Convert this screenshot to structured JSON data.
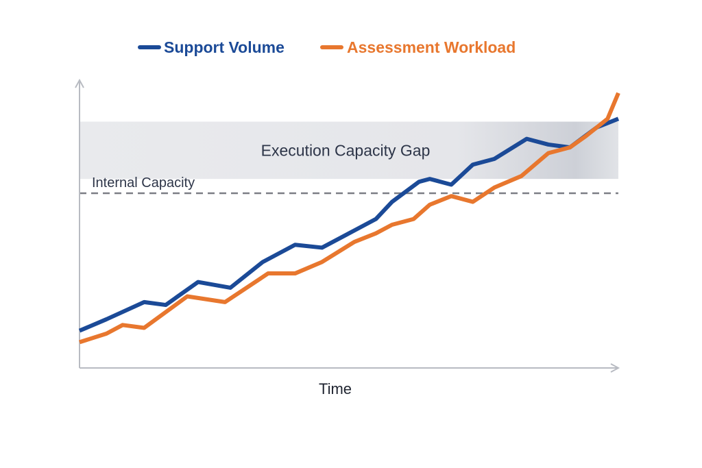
{
  "chart_data": {
    "type": "line",
    "xlabel": "Time",
    "ylabel": "",
    "legend_position": "top-center",
    "grid": false,
    "ylim": [
      0,
      100
    ],
    "series": [
      {
        "name": "Support Volume",
        "color": "#1b4a97",
        "points": [
          [
            0,
            13
          ],
          [
            5,
            17
          ],
          [
            12,
            23
          ],
          [
            16,
            22
          ],
          [
            22,
            30
          ],
          [
            28,
            28
          ],
          [
            34,
            37
          ],
          [
            40,
            43
          ],
          [
            45,
            42
          ],
          [
            51,
            48
          ],
          [
            55,
            52
          ],
          [
            58,
            58
          ],
          [
            63,
            65
          ],
          [
            65,
            66
          ],
          [
            69,
            64
          ],
          [
            73,
            71
          ],
          [
            77,
            73
          ],
          [
            83,
            80
          ],
          [
            87,
            78
          ],
          [
            91,
            77
          ],
          [
            96,
            84
          ],
          [
            100,
            87
          ]
        ]
      },
      {
        "name": "Assessment Workload",
        "color": "#e8772e",
        "points": [
          [
            0,
            9
          ],
          [
            5,
            12
          ],
          [
            8,
            15
          ],
          [
            12,
            14
          ],
          [
            20,
            25
          ],
          [
            27,
            23
          ],
          [
            35,
            33
          ],
          [
            40,
            33
          ],
          [
            45,
            37
          ],
          [
            51,
            44
          ],
          [
            55,
            47
          ],
          [
            58,
            50
          ],
          [
            62,
            52
          ],
          [
            65,
            57
          ],
          [
            69,
            60
          ],
          [
            73,
            58
          ],
          [
            77,
            63
          ],
          [
            82,
            67
          ],
          [
            87,
            75
          ],
          [
            91,
            77
          ],
          [
            94,
            81
          ],
          [
            98,
            87
          ],
          [
            100,
            96
          ]
        ]
      }
    ],
    "annotations": {
      "band_label": "Execution Capacity Gap",
      "band_range": [
        66,
        86
      ],
      "capacity_label": "Internal Capacity",
      "capacity_value": 61
    }
  }
}
